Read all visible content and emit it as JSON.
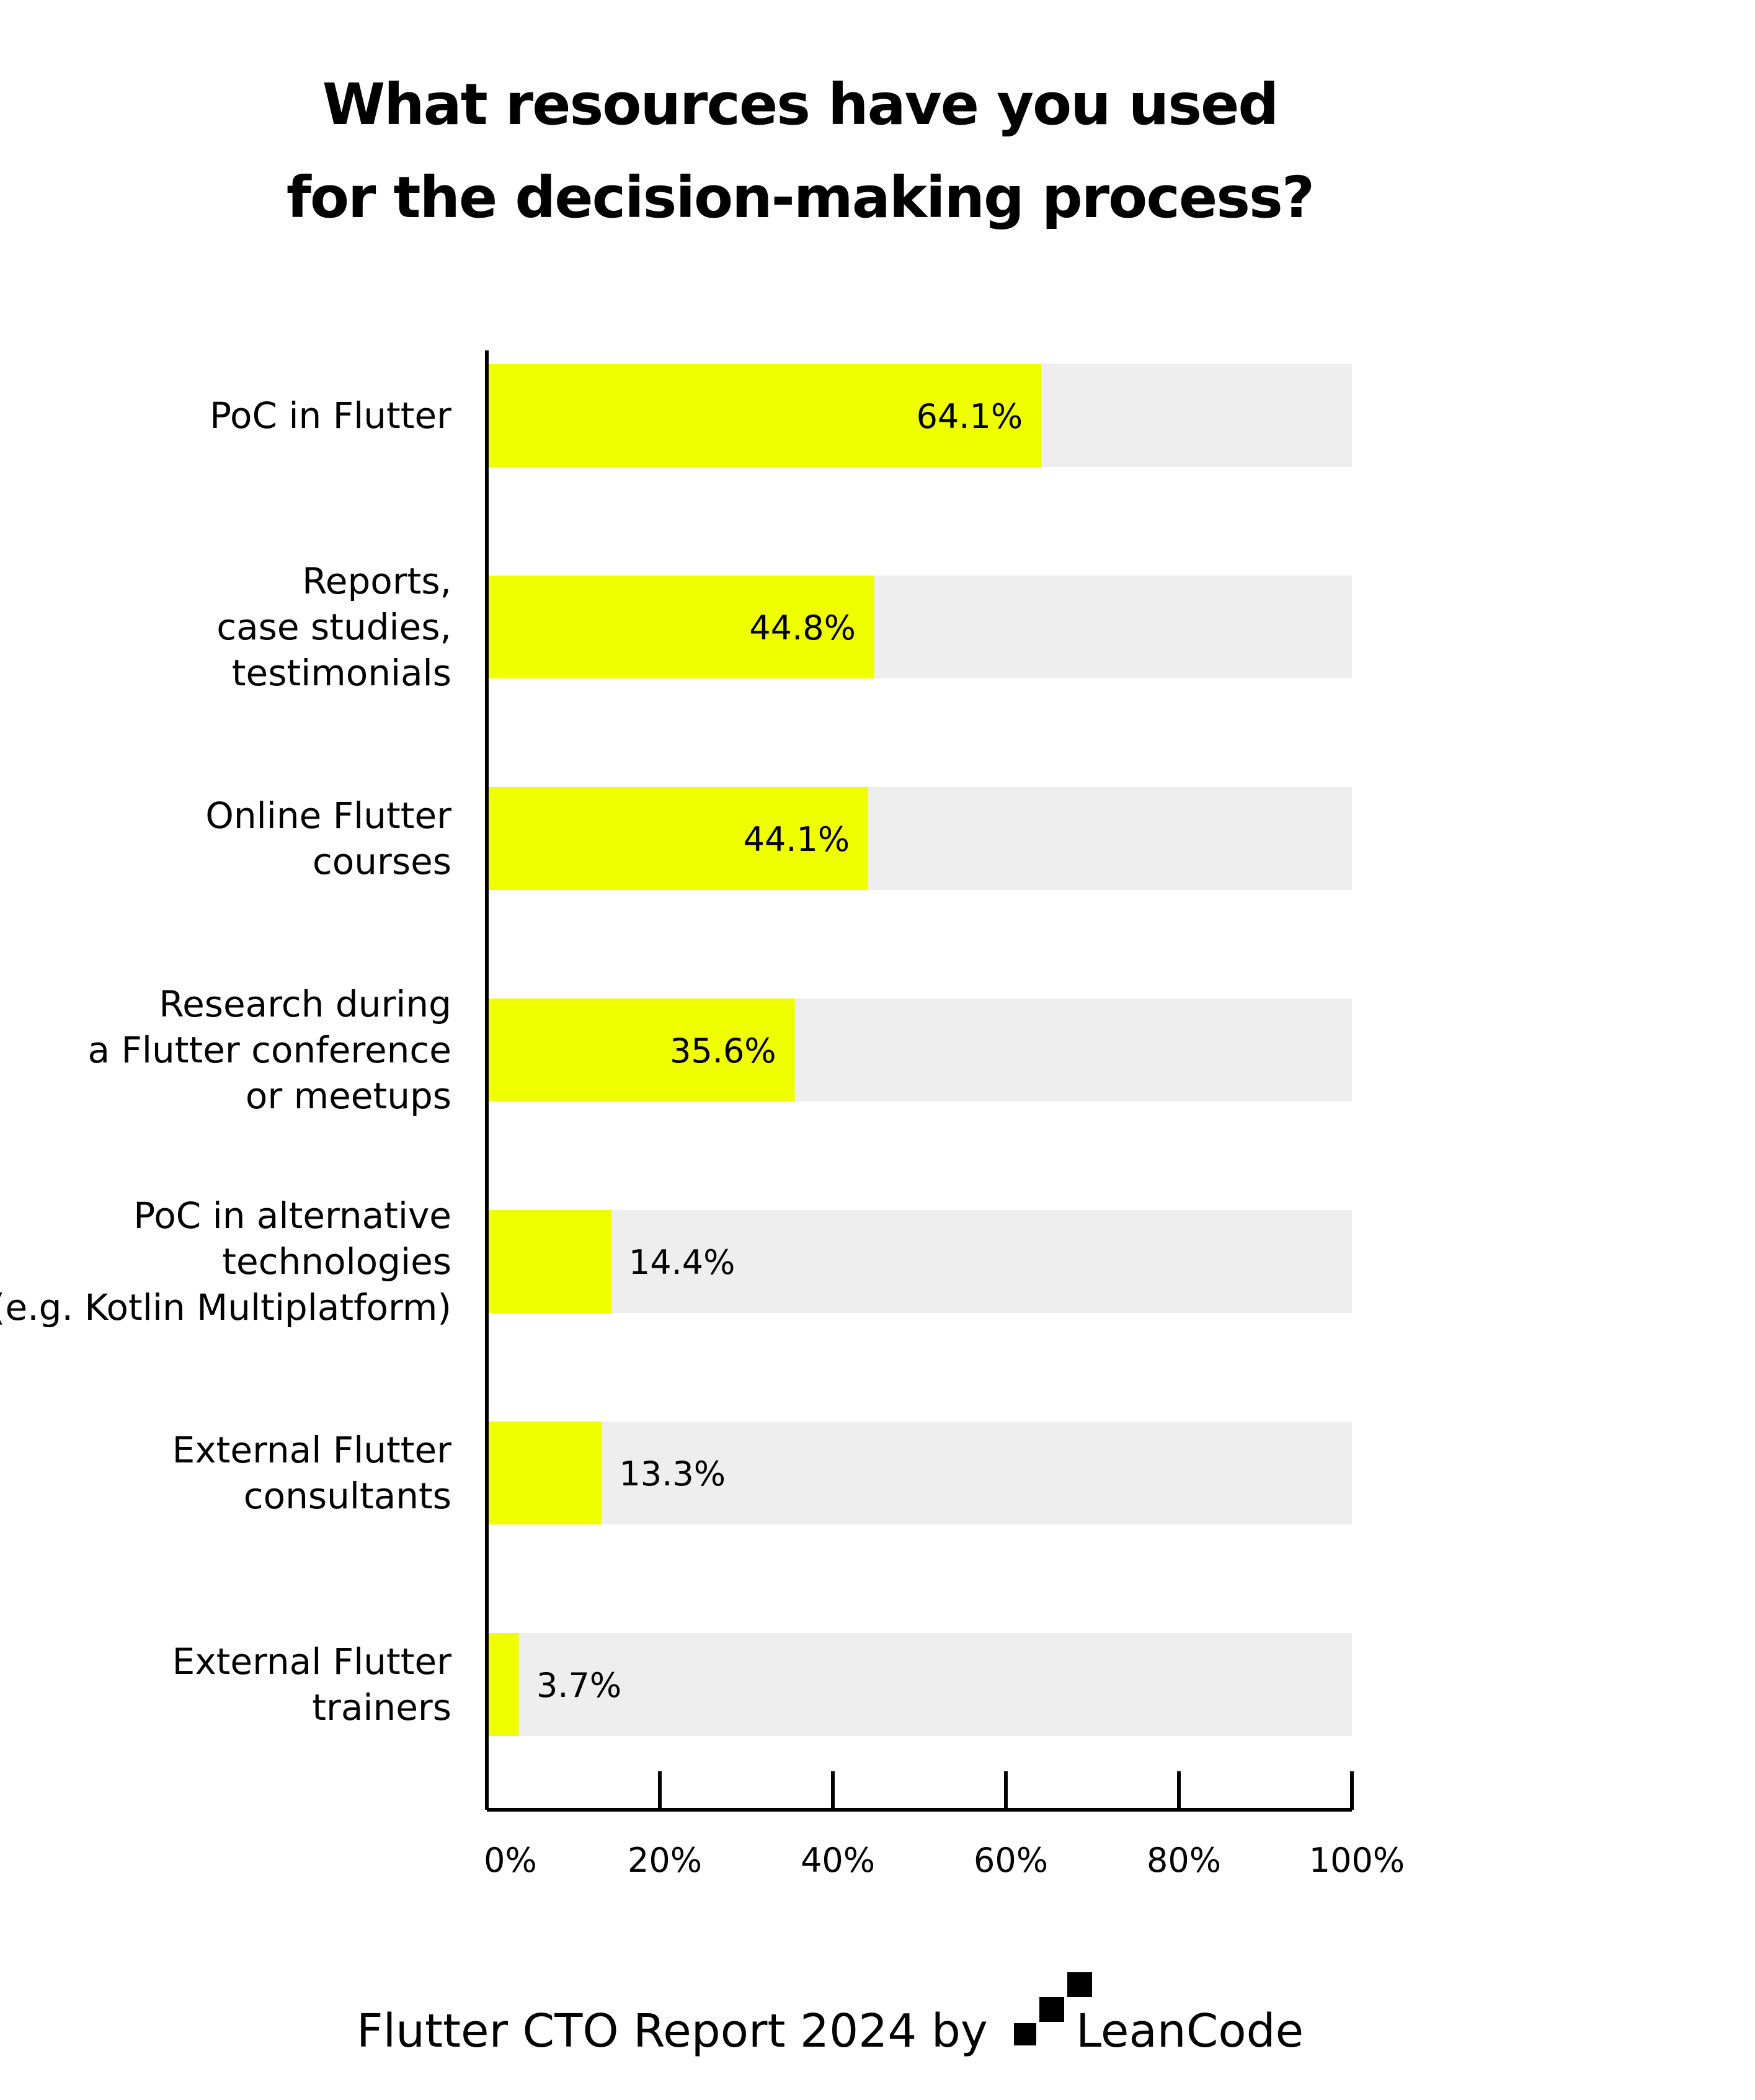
{
  "chart_data": {
    "type": "bar",
    "orientation": "horizontal",
    "title": [
      "What resources have you used",
      "for the decision-making process?"
    ],
    "categories": [
      [
        "PoC in Flutter"
      ],
      [
        "Reports,",
        "case studies,",
        "testimonials"
      ],
      [
        "Online Flutter",
        "courses"
      ],
      [
        "Research during",
        "a Flutter conference",
        "or meetups"
      ],
      [
        "PoC in alternative",
        "technologies",
        "(e.g. Kotlin Multiplatform)"
      ],
      [
        "External Flutter",
        "consultants"
      ],
      [
        "External Flutter",
        "trainers"
      ]
    ],
    "values": [
      64.1,
      44.8,
      44.1,
      35.6,
      14.4,
      13.3,
      3.7
    ],
    "value_labels": [
      "64.1%",
      "44.8%",
      "44.1%",
      "35.6%",
      "14.4%",
      "13.3%",
      "3.7%"
    ],
    "xlim": [
      0,
      100
    ],
    "xticks": [
      0,
      20,
      40,
      60,
      80,
      100
    ],
    "xtick_labels": [
      "0%",
      "20%",
      "40%",
      "60%",
      "80%",
      "100%"
    ],
    "grid": false,
    "legend": "none",
    "colors": {
      "bar": "#F0FF00",
      "track": "#EEEEEE",
      "axis": "#000000",
      "text": "#000000"
    }
  },
  "footer": {
    "text": "Flutter CTO Report 2024 by",
    "brand": "LeanCode",
    "brand_icon": "leancode-logo-icon"
  }
}
